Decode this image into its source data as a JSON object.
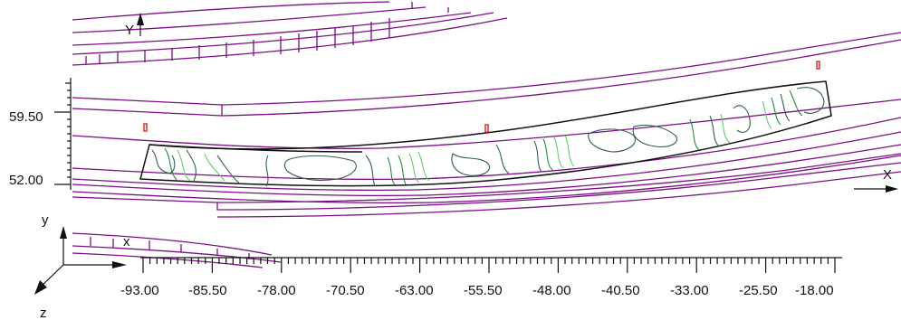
{
  "viewport": {
    "axis_x_label": "X",
    "axis_y_label": "Y",
    "ucs_x_label": "x",
    "ucs_y_label": "y",
    "ucs_z_label": "z"
  },
  "ruler_bottom": {
    "ticks": [
      "-93.00",
      "-85.50",
      "-78.00",
      "-70.50",
      "-63.00",
      "-55.50",
      "-48.00",
      "-40.50",
      "-33.00",
      "-25.50",
      "-18.00"
    ]
  },
  "ruler_left": {
    "ticks": [
      "59.50",
      "52.00"
    ]
  },
  "colors": {
    "road_lines": "#7a0f84",
    "strip_outline": "#111111",
    "contour_dark": "#2f5f4f",
    "contour_mid": "#238b3a",
    "contour_light": "#5fd05f",
    "marker": "#e02020"
  },
  "icons": {
    "survey_marker": "red-survey-marker"
  }
}
